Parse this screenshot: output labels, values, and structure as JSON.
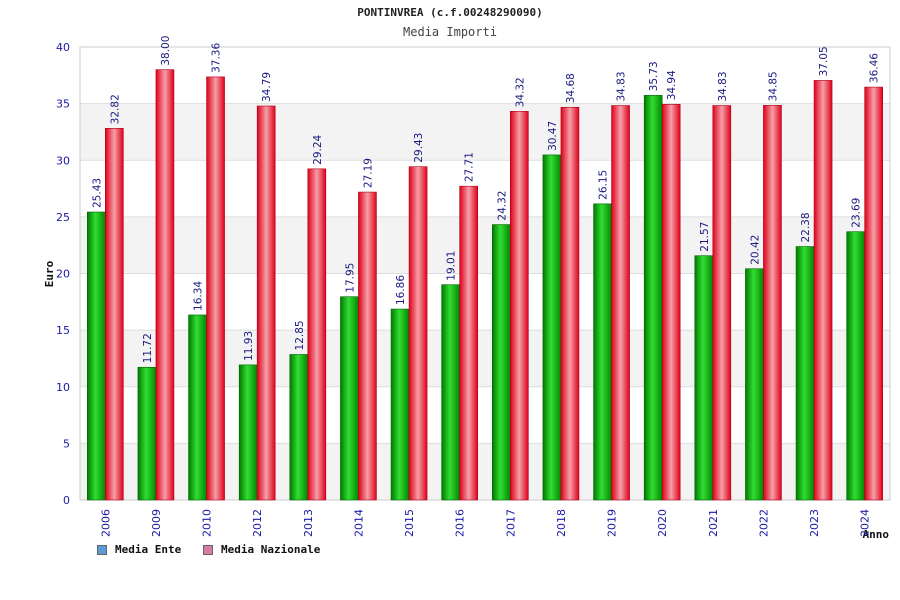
{
  "chart_data": {
    "type": "bar",
    "title": "PONTINVREA (c.f.00248290090)",
    "subtitle": "Media Importi",
    "xlabel": "Anno",
    "ylabel": "Euro",
    "ylim": [
      0,
      40
    ],
    "yticks": [
      0,
      5,
      10,
      15,
      20,
      25,
      30,
      35,
      40
    ],
    "grid": true,
    "legend_position": "bottom-left",
    "categories": [
      "2006",
      "2009",
      "2010",
      "2012",
      "2013",
      "2014",
      "2015",
      "2016",
      "2017",
      "2018",
      "2019",
      "2020",
      "2021",
      "2022",
      "2023",
      "2024"
    ],
    "series": [
      {
        "name": "Media Ente",
        "color": "#00a000",
        "legend_color": "#5b9bd5",
        "values": [
          25.43,
          11.72,
          16.34,
          11.93,
          12.85,
          17.95,
          16.86,
          19.01,
          24.32,
          30.47,
          26.15,
          35.73,
          21.57,
          20.42,
          22.38,
          23.69
        ],
        "labels": [
          "25.43",
          "11.72",
          "16.34",
          "11.93",
          "12.85",
          "17.95",
          "16.86",
          "19.01",
          "24.32",
          "30.47",
          "26.15",
          "35.73",
          "21.57",
          "20.42",
          "22.38",
          "23.69"
        ]
      },
      {
        "name": "Media Nazionale",
        "color": "#e8001c",
        "legend_color": "#d67ba8",
        "values": [
          32.82,
          38.0,
          37.36,
          34.79,
          29.24,
          27.19,
          29.43,
          27.71,
          34.32,
          34.68,
          34.83,
          34.94,
          34.83,
          34.85,
          37.05,
          36.46
        ],
        "labels": [
          "32.82",
          "38.00",
          "37.36",
          "34.79",
          "29.24",
          "27.19",
          "29.43",
          "27.71",
          "34.32",
          "34.68",
          "34.83",
          "34.94",
          "34.83",
          "34.85",
          "37.05",
          "36.46"
        ]
      }
    ]
  }
}
